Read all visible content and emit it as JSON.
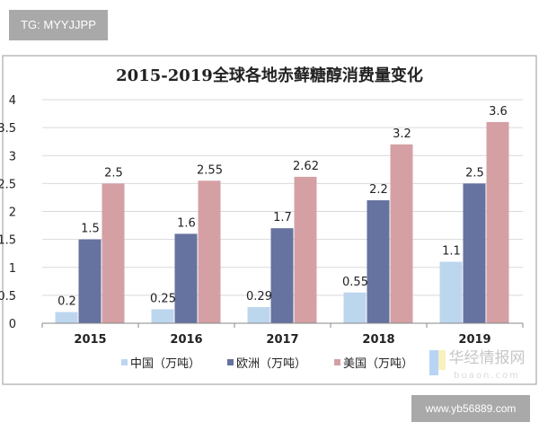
{
  "top_tag": "TG: MYYJJPP",
  "bottom_site": "www.yb56889.com",
  "watermark": {
    "cn": "华经情报网",
    "en": "buaon.com"
  },
  "chart_data": {
    "type": "bar",
    "title": "2015-2019全球各地赤藓糖醇消费量变化",
    "categories": [
      "2015",
      "2016",
      "2017",
      "2018",
      "2019"
    ],
    "series": [
      {
        "name": "中国（万吨）",
        "color": "#bcd6ee",
        "values": [
          0.2,
          0.25,
          0.29,
          0.55,
          1.1
        ],
        "labels": [
          "0.2",
          "0.25",
          "0.29",
          "0.55",
          "1.1"
        ]
      },
      {
        "name": "欧洲（万吨）",
        "color": "#66729f",
        "values": [
          1.5,
          1.6,
          1.7,
          2.2,
          2.5
        ],
        "labels": [
          "1.5",
          "1.6",
          "1.7",
          "2.2",
          "2.5"
        ]
      },
      {
        "name": "美国（万吨）",
        "color": "#d4a0a4",
        "values": [
          2.5,
          2.55,
          2.62,
          3.2,
          3.6
        ],
        "labels": [
          "2.5",
          "2.55",
          "2.62",
          "3.2",
          "3.6"
        ]
      }
    ],
    "yticks": [
      "0",
      "0.5",
      "1",
      "1.5",
      "2",
      "2.5",
      "3",
      "3.5",
      "4"
    ],
    "ylim": [
      0,
      4
    ],
    "xlabel": "",
    "ylabel": "",
    "grid": true,
    "legend_position": "bottom"
  }
}
